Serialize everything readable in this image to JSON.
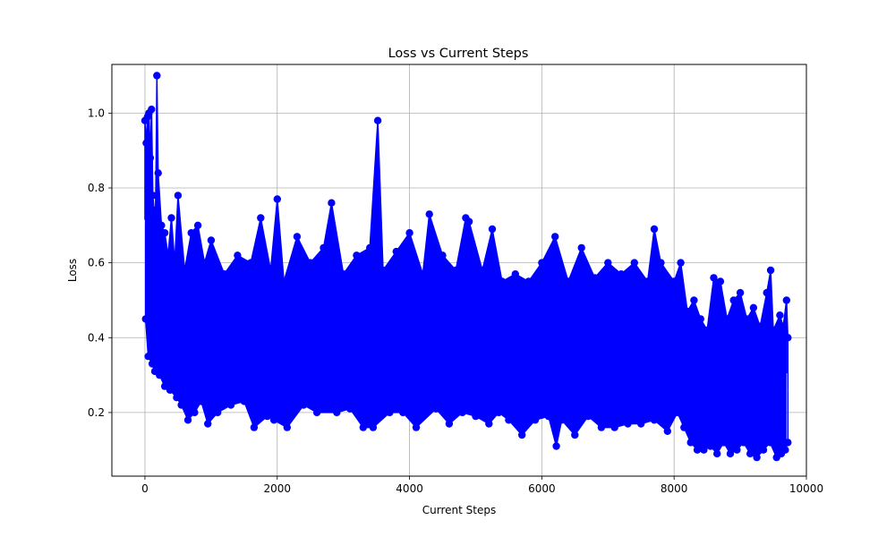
{
  "chart_data": {
    "type": "line",
    "title": "Loss vs Current Steps",
    "xlabel": "Current Steps",
    "ylabel": "Loss",
    "xlim": [
      -500,
      10000
    ],
    "ylim": [
      0.03,
      1.13
    ],
    "xticks": [
      0,
      2000,
      4000,
      6000,
      8000,
      10000
    ],
    "xtick_labels": [
      "0",
      "2000",
      "4000",
      "6000",
      "8000",
      "10000"
    ],
    "yticks": [
      0.2,
      0.4,
      0.6,
      0.8,
      1.0
    ],
    "ytick_labels": [
      "0.2",
      "0.4",
      "0.6",
      "0.8",
      "1.0"
    ],
    "grid": true,
    "marker": "circle",
    "series": [
      {
        "color": "#0000ff",
        "x": [
          0,
          20,
          40,
          60,
          80,
          100,
          120,
          140,
          160,
          180,
          200,
          250,
          300,
          350,
          400,
          450,
          500,
          600,
          700,
          800,
          900,
          1000,
          1200,
          1400,
          1600,
          1750,
          1900,
          2000,
          2100,
          2300,
          2500,
          2700,
          2820,
          3000,
          3200,
          3400,
          3520,
          3600,
          3800,
          4000,
          4200,
          4300,
          4500,
          4700,
          4850,
          4900,
          5100,
          5250,
          5400,
          5600,
          5800,
          6000,
          6200,
          6400,
          6600,
          6800,
          7000,
          7200,
          7400,
          7600,
          7700,
          7800,
          8000,
          8100,
          8200,
          8300,
          8400,
          8500,
          8600,
          8700,
          8800,
          8900,
          9000,
          9100,
          9200,
          9300,
          9400,
          9460,
          9500,
          9600,
          9650,
          9700,
          9720
        ],
        "y": [
          0.98,
          0.92,
          0.99,
          1.0,
          0.88,
          1.01,
          0.78,
          0.74,
          0.72,
          1.1,
          0.84,
          0.7,
          0.68,
          0.62,
          0.72,
          0.6,
          0.78,
          0.58,
          0.68,
          0.7,
          0.6,
          0.66,
          0.57,
          0.62,
          0.6,
          0.72,
          0.58,
          0.77,
          0.55,
          0.67,
          0.6,
          0.64,
          0.76,
          0.57,
          0.62,
          0.64,
          0.98,
          0.58,
          0.63,
          0.68,
          0.57,
          0.73,
          0.62,
          0.58,
          0.72,
          0.71,
          0.58,
          0.69,
          0.55,
          0.57,
          0.55,
          0.6,
          0.67,
          0.55,
          0.64,
          0.56,
          0.6,
          0.57,
          0.6,
          0.55,
          0.69,
          0.6,
          0.55,
          0.6,
          0.47,
          0.5,
          0.45,
          0.42,
          0.56,
          0.55,
          0.45,
          0.5,
          0.52,
          0.45,
          0.48,
          0.43,
          0.52,
          0.58,
          0.42,
          0.46,
          0.43,
          0.5,
          0.4
        ]
      },
      {
        "color": "#0000ff",
        "x": [
          10,
          50,
          110,
          150,
          220,
          300,
          380,
          480,
          550,
          650,
          750,
          850,
          950,
          1100,
          1300,
          1500,
          1650,
          1850,
          1950,
          2150,
          2400,
          2600,
          2900,
          3100,
          3300,
          3450,
          3700,
          3900,
          4100,
          4400,
          4600,
          4800,
          5000,
          5200,
          5350,
          5500,
          5700,
          5900,
          6100,
          6220,
          6300,
          6500,
          6700,
          6900,
          7100,
          7300,
          7500,
          7700,
          7900,
          8050,
          8150,
          8250,
          8350,
          8450,
          8550,
          8650,
          8750,
          8850,
          8950,
          9050,
          9150,
          9250,
          9350,
          9450,
          9550,
          9620,
          9680,
          9720
        ],
        "y": [
          0.45,
          0.35,
          0.33,
          0.31,
          0.3,
          0.27,
          0.26,
          0.24,
          0.22,
          0.18,
          0.2,
          0.23,
          0.17,
          0.2,
          0.22,
          0.23,
          0.16,
          0.19,
          0.18,
          0.16,
          0.22,
          0.2,
          0.2,
          0.21,
          0.16,
          0.16,
          0.2,
          0.2,
          0.16,
          0.21,
          0.17,
          0.2,
          0.19,
          0.17,
          0.2,
          0.18,
          0.14,
          0.18,
          0.19,
          0.11,
          0.18,
          0.14,
          0.19,
          0.16,
          0.16,
          0.17,
          0.17,
          0.18,
          0.15,
          0.2,
          0.16,
          0.12,
          0.1,
          0.1,
          0.11,
          0.09,
          0.12,
          0.09,
          0.1,
          0.12,
          0.09,
          0.08,
          0.1,
          0.12,
          0.08,
          0.09,
          0.1,
          0.12
        ]
      }
    ]
  }
}
